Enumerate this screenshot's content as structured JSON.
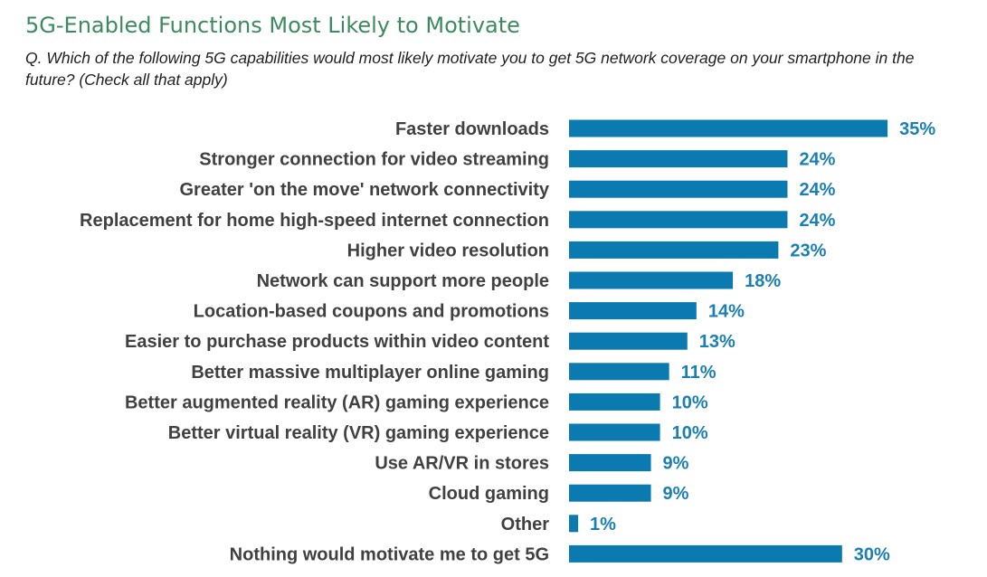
{
  "title": "5G-Enabled Functions Most Likely to Motivate",
  "subtitle": "Q. Which of the following 5G capabilities would most likely motivate you to get 5G network coverage on your smartphone in the future? (Check all that apply)",
  "colors": {
    "bar": "#0a7ab0",
    "value_label": "#1a7fb1",
    "title": "#3d8a5f"
  },
  "chart_data": {
    "type": "bar",
    "orientation": "horizontal",
    "categories": [
      "Faster downloads",
      "Stronger connection for video streaming",
      "Greater 'on the move' network connectivity",
      "Replacement for home high-speed internet connection",
      "Higher video resolution",
      "Network can support more people",
      "Location-based coupons and promotions",
      "Easier to purchase products within video content",
      "Better massive multiplayer online gaming",
      "Better augmented reality (AR) gaming experience",
      "Better virtual reality (VR) gaming experience",
      "Use AR/VR in stores",
      "Cloud gaming",
      "Other",
      "Nothing would motivate me to get 5G"
    ],
    "values": [
      35,
      24,
      24,
      24,
      23,
      18,
      14,
      13,
      11,
      10,
      10,
      9,
      9,
      1,
      30
    ],
    "value_labels": [
      "35%",
      "24%",
      "24%",
      "24%",
      "23%",
      "18%",
      "14%",
      "13%",
      "11%",
      "10%",
      "10%",
      "9%",
      "9%",
      "1%",
      "30%"
    ],
    "value_unit": "%",
    "xlim": [
      0,
      35
    ],
    "grid": false,
    "legend": "none"
  }
}
